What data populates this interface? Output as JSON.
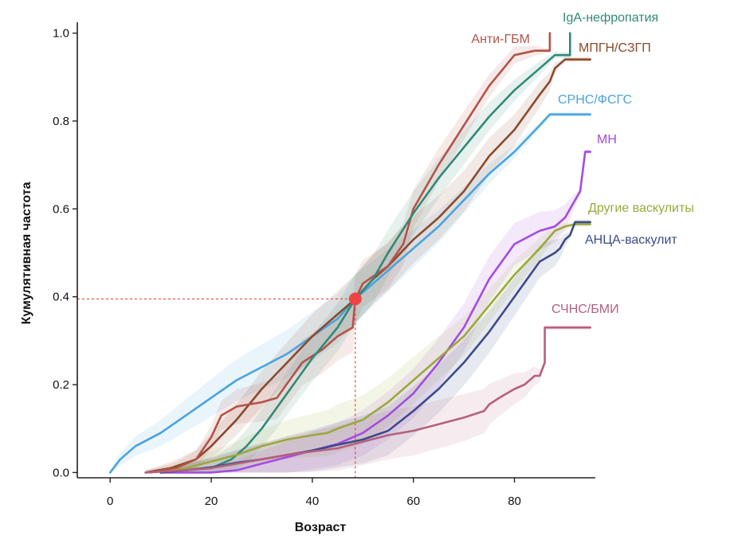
{
  "chart_data": {
    "type": "line",
    "xlabel": "Возраст",
    "ylabel": "Кумулятивная частота",
    "xlim": [
      -6.5,
      96
    ],
    "ylim": [
      -0.012,
      1.012
    ],
    "xticks": [
      "0",
      "20",
      "40",
      "60",
      "80"
    ],
    "xtick_values": [
      0,
      20,
      40,
      60,
      80
    ],
    "yticks": [
      "0.0",
      "0.2",
      "0.4",
      "0.6",
      "0.8",
      "1.0"
    ],
    "ytick_values": [
      0,
      0.2,
      0.4,
      0.6,
      0.8,
      1.0
    ],
    "grid": false,
    "highlight": {
      "x": 48.5,
      "y": 0.395,
      "color": "#ef4444"
    },
    "series": [
      {
        "name": "СРНС/ФСГС",
        "color": "#4aa3df",
        "x": [
          0,
          2,
          5,
          10,
          15,
          20,
          25,
          30,
          35,
          40,
          45,
          48.5,
          52,
          55,
          60,
          65,
          70,
          75,
          80,
          85,
          87,
          95
        ],
        "y": [
          0,
          0.03,
          0.06,
          0.09,
          0.13,
          0.17,
          0.21,
          0.24,
          0.27,
          0.31,
          0.35,
          0.395,
          0.43,
          0.46,
          0.51,
          0.56,
          0.62,
          0.68,
          0.73,
          0.79,
          0.815,
          0.815
        ]
      },
      {
        "name": "МПГН/СЗГП",
        "color": "#8b4a2b",
        "x": [
          7,
          12,
          17,
          20,
          25,
          30,
          35,
          40,
          45,
          48.5,
          52,
          55,
          60,
          65,
          70,
          75,
          80,
          85,
          87,
          88,
          89,
          90,
          95
        ],
        "y": [
          0,
          0.01,
          0.03,
          0.06,
          0.12,
          0.19,
          0.25,
          0.31,
          0.36,
          0.395,
          0.44,
          0.47,
          0.53,
          0.58,
          0.64,
          0.72,
          0.78,
          0.86,
          0.89,
          0.92,
          0.93,
          0.94,
          0.94
        ]
      },
      {
        "name": "Анти-ГБМ",
        "color": "#b5524a",
        "x": [
          8,
          13,
          17,
          20,
          22,
          25,
          30,
          33,
          38,
          42,
          45,
          48,
          48.5,
          50,
          55,
          58,
          60,
          65,
          70,
          75,
          80,
          84,
          86,
          87,
          87
        ],
        "y": [
          0,
          0.01,
          0.03,
          0.08,
          0.13,
          0.15,
          0.16,
          0.17,
          0.25,
          0.28,
          0.31,
          0.33,
          0.395,
          0.43,
          0.47,
          0.52,
          0.6,
          0.7,
          0.79,
          0.88,
          0.95,
          0.96,
          0.96,
          0.96,
          1.0
        ]
      },
      {
        "name": "IgA-нефропатия",
        "color": "#2f8a76",
        "x": [
          10,
          15,
          20,
          24,
          27,
          30,
          35,
          40,
          45,
          48.5,
          52,
          55,
          60,
          65,
          70,
          75,
          80,
          85,
          88,
          91,
          91
        ],
        "y": [
          0,
          0.005,
          0.01,
          0.03,
          0.06,
          0.1,
          0.18,
          0.26,
          0.33,
          0.395,
          0.44,
          0.5,
          0.59,
          0.67,
          0.74,
          0.81,
          0.87,
          0.92,
          0.95,
          0.95,
          1.0
        ]
      },
      {
        "name": "МН",
        "color": "#a44be0",
        "x": [
          10,
          20,
          25,
          30,
          35,
          40,
          45,
          50,
          55,
          60,
          65,
          70,
          75,
          80,
          85,
          88,
          90,
          91,
          92,
          93,
          94,
          95
        ],
        "y": [
          0,
          0.0,
          0.005,
          0.02,
          0.035,
          0.05,
          0.065,
          0.09,
          0.13,
          0.18,
          0.25,
          0.33,
          0.44,
          0.52,
          0.55,
          0.56,
          0.58,
          0.6,
          0.62,
          0.64,
          0.73,
          0.73
        ]
      },
      {
        "name": "Другие васкулиты",
        "color": "#9aa93a",
        "x": [
          10,
          15,
          20,
          25,
          30,
          35,
          40,
          43,
          45,
          50,
          55,
          60,
          65,
          70,
          75,
          80,
          85,
          88,
          90,
          92,
          95
        ],
        "y": [
          0,
          0.01,
          0.025,
          0.04,
          0.06,
          0.075,
          0.085,
          0.09,
          0.1,
          0.12,
          0.16,
          0.21,
          0.26,
          0.31,
          0.38,
          0.45,
          0.51,
          0.55,
          0.56,
          0.565,
          0.565
        ]
      },
      {
        "name": "АНЦА-васкулит",
        "color": "#3d4a8a",
        "x": [
          10,
          15,
          20,
          25,
          30,
          35,
          40,
          45,
          50,
          55,
          60,
          65,
          70,
          75,
          80,
          85,
          88,
          89,
          90,
          91,
          92,
          95
        ],
        "y": [
          0,
          0.005,
          0.012,
          0.022,
          0.03,
          0.04,
          0.05,
          0.063,
          0.075,
          0.095,
          0.14,
          0.19,
          0.25,
          0.32,
          0.4,
          0.48,
          0.5,
          0.51,
          0.53,
          0.54,
          0.57,
          0.57
        ]
      },
      {
        "name": "СЧНС/БМИ",
        "color": "#b5607d",
        "x": [
          7,
          15,
          20,
          25,
          30,
          35,
          40,
          45,
          50,
          55,
          60,
          65,
          70,
          74,
          75,
          77,
          80,
          82,
          84,
          85,
          86,
          86,
          95
        ],
        "y": [
          0,
          0.005,
          0.01,
          0.02,
          0.03,
          0.04,
          0.048,
          0.055,
          0.07,
          0.085,
          0.095,
          0.11,
          0.125,
          0.14,
          0.155,
          0.17,
          0.19,
          0.2,
          0.22,
          0.22,
          0.25,
          0.33,
          0.33
        ]
      }
    ]
  }
}
